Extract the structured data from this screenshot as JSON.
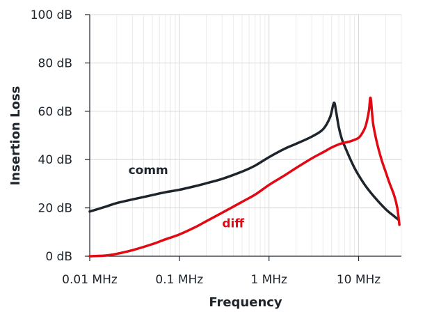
{
  "chart_data": {
    "type": "line",
    "xlabel": "Frequency",
    "ylabel": "Insertion Loss",
    "x_scale": "log",
    "xlim": [
      "0.01 MHz",
      "30 MHz"
    ],
    "ylim": [
      0,
      100
    ],
    "x_ticks": [
      {
        "value": 0.01,
        "label": "0.01 MHz"
      },
      {
        "value": 0.1,
        "label": "0.1 MHz"
      },
      {
        "value": 1,
        "label": "1 MHz"
      },
      {
        "value": 10,
        "label": "10 MHz"
      }
    ],
    "y_ticks": [
      {
        "value": 0,
        "label": "0 dB"
      },
      {
        "value": 20,
        "label": "20 dB"
      },
      {
        "value": 40,
        "label": "40 dB"
      },
      {
        "value": 60,
        "label": "60 dB"
      },
      {
        "value": 80,
        "label": "80 dB"
      },
      {
        "value": 100,
        "label": "100 dB"
      }
    ],
    "grid": true,
    "series": [
      {
        "name": "comm",
        "color": "#1d242b",
        "x": [
          0.01,
          0.015,
          0.02,
          0.03,
          0.05,
          0.07,
          0.1,
          0.15,
          0.2,
          0.3,
          0.5,
          0.7,
          1,
          1.5,
          2,
          3,
          4,
          4.8,
          5.3,
          5.6,
          6,
          6.5,
          7,
          8,
          9,
          10,
          12,
          15,
          20,
          25,
          28
        ],
        "y": [
          18.5,
          20.5,
          22,
          23.5,
          25.3,
          26.5,
          27.5,
          29,
          30.2,
          32,
          35,
          37.5,
          41,
          44.5,
          46.5,
          49.5,
          52.5,
          57.5,
          63.5,
          60,
          53.5,
          48.5,
          45.5,
          40.5,
          36.5,
          33.5,
          29,
          24.5,
          19.5,
          16.5,
          15
        ]
      },
      {
        "name": "diff",
        "color": "#e10a14",
        "x": [
          0.01,
          0.015,
          0.02,
          0.03,
          0.05,
          0.07,
          0.1,
          0.15,
          0.2,
          0.3,
          0.5,
          0.7,
          1,
          1.5,
          2,
          3,
          4,
          5,
          6,
          7,
          8,
          9,
          10,
          11,
          12,
          13,
          13.6,
          14.5,
          16,
          18,
          20,
          22,
          25,
          27,
          28.5
        ],
        "y": [
          0,
          0.3,
          1,
          2.5,
          5,
          7,
          9,
          12,
          14.5,
          18,
          22.5,
          25.5,
          29.5,
          33.5,
          36.5,
          40.5,
          43,
          45,
          46.3,
          47,
          47.5,
          48.2,
          49,
          51,
          54,
          60,
          65.5,
          55,
          47,
          40,
          35,
          30.5,
          25,
          20,
          13
        ]
      }
    ],
    "annotations": [
      {
        "text": "comm",
        "x": 0.027,
        "y": 34
      },
      {
        "text": "diff",
        "x": 0.3,
        "y": 12
      }
    ]
  }
}
